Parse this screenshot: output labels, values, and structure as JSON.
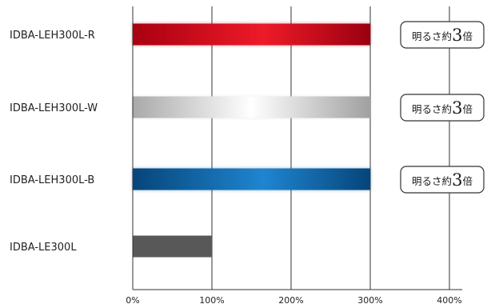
{
  "chart_data": {
    "type": "bar",
    "orientation": "horizontal",
    "categories": [
      "IDBA-LEH300L-R",
      "IDBA-LEH300L-W",
      "IDBA-LEH300L-B",
      "IDBA-LE300L"
    ],
    "values": [
      300,
      300,
      300,
      100
    ],
    "xlim": [
      0,
      400
    ],
    "xticks": [
      0,
      100,
      200,
      300,
      400
    ],
    "xtick_labels": [
      "0%",
      "100%",
      "200%",
      "300%",
      "400%"
    ],
    "grid": true,
    "bar_colors": [
      "#c8101c",
      "#cfcfcf",
      "#0a5fa0",
      "#5a5a5a"
    ],
    "annotations": [
      {
        "category": "IDBA-LEH300L-R",
        "text": "明るさ約",
        "number": "3",
        "suffix": "倍"
      },
      {
        "category": "IDBA-LEH300L-W",
        "text": "明るさ約",
        "number": "3",
        "suffix": "倍"
      },
      {
        "category": "IDBA-LEH300L-B",
        "text": "明るさ約",
        "number": "3",
        "suffix": "倍"
      }
    ]
  }
}
